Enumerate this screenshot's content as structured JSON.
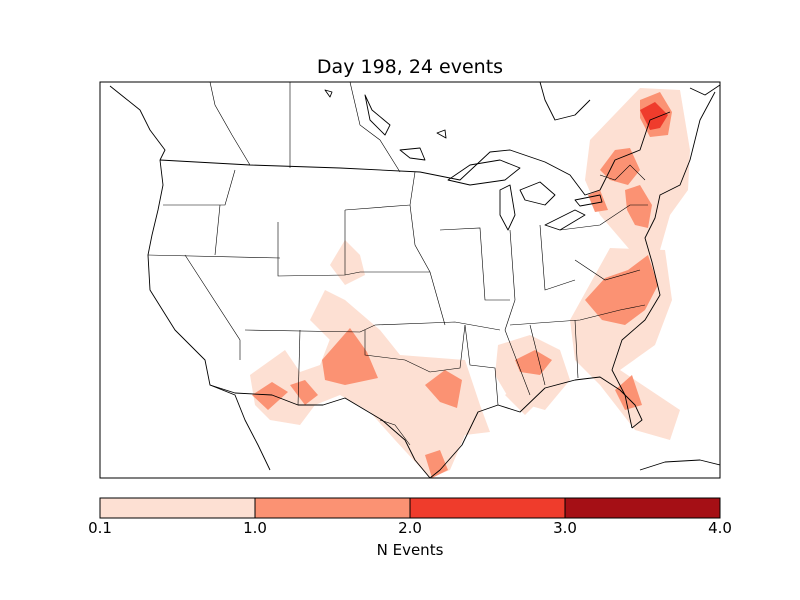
{
  "title": "Day 198, 24 events",
  "colorbar": {
    "label": "N Events",
    "ticks": [
      "0.1",
      "1.0",
      "2.0",
      "3.0",
      "4.0"
    ],
    "bins": [
      {
        "min": 0.1,
        "max": 1.0,
        "color": "#fde0d3"
      },
      {
        "min": 1.0,
        "max": 2.0,
        "color": "#fb9273"
      },
      {
        "min": 2.0,
        "max": 3.0,
        "color": "#ef3c2c"
      },
      {
        "min": 3.0,
        "max": 4.0,
        "color": "#a50f15"
      }
    ]
  },
  "chart_data": {
    "type": "heatmap",
    "title": "Day 198, 24 events",
    "colorbar_label": "N Events",
    "colorbar_range": [
      0.1,
      4.0
    ],
    "colorbar_ticks": [
      0.1,
      1.0,
      2.0,
      3.0,
      4.0
    ]
  }
}
